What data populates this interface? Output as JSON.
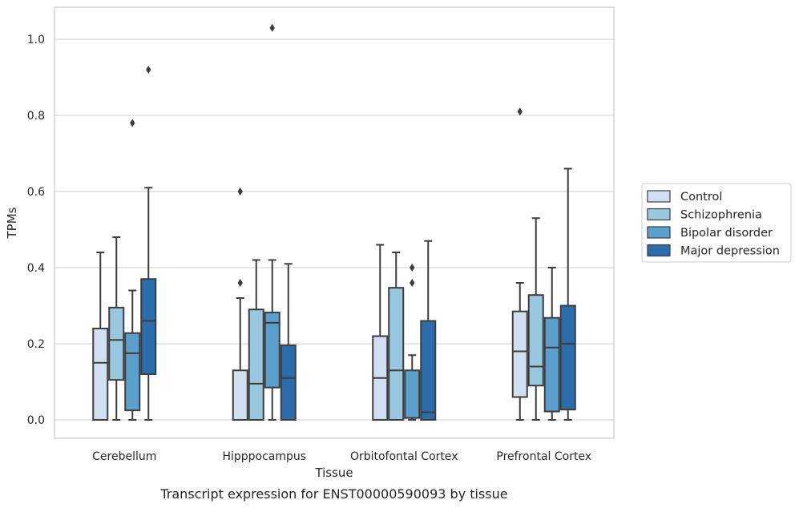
{
  "chart_data": {
    "type": "boxplot",
    "caption": "Transcript expression for ENST00000590093 by tissue",
    "xlabel": "Tissue",
    "ylabel": "TPMs",
    "ylim": [
      -0.05,
      1.08
    ],
    "yticks": [
      "0.0",
      "0.2",
      "0.4",
      "0.6",
      "0.8",
      "1.0"
    ],
    "grid": true,
    "legend_position": "right",
    "categories": [
      "Cerebellum",
      "Hipppocampus",
      "Orbitofontal Cortex",
      "Prefrontal Cortex"
    ],
    "series": [
      {
        "name": "Control",
        "color": "#d1e0f1",
        "boxes": [
          {
            "whisker_low": 0.0,
            "q1": 0.0,
            "median": 0.15,
            "q3": 0.24,
            "whisker_high": 0.44,
            "outliers": []
          },
          {
            "whisker_low": 0.0,
            "q1": 0.0,
            "median": 0.0,
            "q3": 0.13,
            "whisker_high": 0.32,
            "outliers": [
              0.36,
              0.6
            ]
          },
          {
            "whisker_low": 0.0,
            "q1": 0.0,
            "median": 0.11,
            "q3": 0.22,
            "whisker_high": 0.46,
            "outliers": []
          },
          {
            "whisker_low": 0.0,
            "q1": 0.06,
            "median": 0.18,
            "q3": 0.285,
            "whisker_high": 0.36,
            "outliers": [
              0.81
            ]
          }
        ]
      },
      {
        "name": "Schizophrenia",
        "color": "#9ac7e0",
        "boxes": [
          {
            "whisker_low": 0.0,
            "q1": 0.105,
            "median": 0.21,
            "q3": 0.295,
            "whisker_high": 0.48,
            "outliers": []
          },
          {
            "whisker_low": 0.0,
            "q1": 0.0,
            "median": 0.095,
            "q3": 0.29,
            "whisker_high": 0.42,
            "outliers": []
          },
          {
            "whisker_low": 0.0,
            "q1": 0.0,
            "median": 0.13,
            "q3": 0.347,
            "whisker_high": 0.44,
            "outliers": []
          },
          {
            "whisker_low": 0.0,
            "q1": 0.09,
            "median": 0.14,
            "q3": 0.328,
            "whisker_high": 0.53,
            "outliers": []
          }
        ]
      },
      {
        "name": "Bipolar disorder",
        "color": "#5ba0cc",
        "boxes": [
          {
            "whisker_low": 0.0,
            "q1": 0.025,
            "median": 0.175,
            "q3": 0.228,
            "whisker_high": 0.34,
            "outliers": [
              0.78
            ]
          },
          {
            "whisker_low": 0.0,
            "q1": 0.085,
            "median": 0.255,
            "q3": 0.282,
            "whisker_high": 0.42,
            "outliers": [
              1.03
            ]
          },
          {
            "whisker_low": 0.0,
            "q1": 0.005,
            "median": 0.005,
            "q3": 0.13,
            "whisker_high": 0.17,
            "outliers": [
              0.36,
              0.4
            ]
          },
          {
            "whisker_low": 0.0,
            "q1": 0.022,
            "median": 0.19,
            "q3": 0.268,
            "whisker_high": 0.4,
            "outliers": []
          }
        ]
      },
      {
        "name": "Major depression",
        "color": "#2b6cab",
        "boxes": [
          {
            "whisker_low": 0.0,
            "q1": 0.12,
            "median": 0.26,
            "q3": 0.37,
            "whisker_high": 0.61,
            "outliers": [
              0.92
            ]
          },
          {
            "whisker_low": 0.0,
            "q1": 0.0,
            "median": 0.11,
            "q3": 0.196,
            "whisker_high": 0.41,
            "outliers": []
          },
          {
            "whisker_low": 0.0,
            "q1": 0.0,
            "median": 0.02,
            "q3": 0.26,
            "whisker_high": 0.47,
            "outliers": []
          },
          {
            "whisker_low": 0.0,
            "q1": 0.027,
            "median": 0.2,
            "q3": 0.3,
            "whisker_high": 0.66,
            "outliers": []
          }
        ]
      }
    ]
  }
}
